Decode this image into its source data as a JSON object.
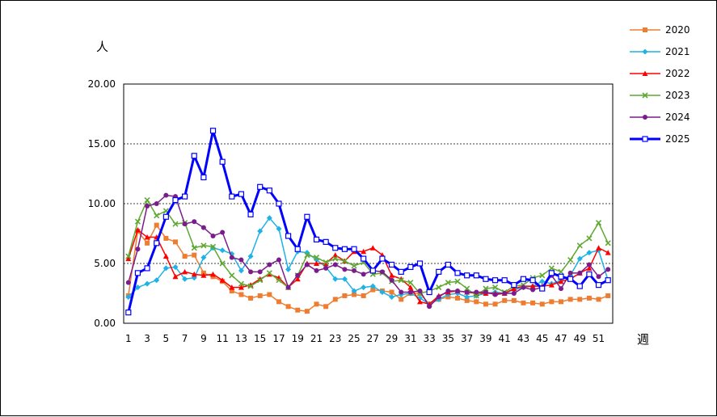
{
  "chart_data": {
    "type": "line",
    "title": "",
    "ylabel": "人",
    "xlabel": "週",
    "ylim": [
      0,
      20
    ],
    "yticks": [
      "0.00",
      "5.00",
      "10.00",
      "15.00",
      "20.00"
    ],
    "xticks": [
      "1",
      "3",
      "5",
      "7",
      "9",
      "11",
      "13",
      "15",
      "17",
      "19",
      "21",
      "23",
      "25",
      "27",
      "29",
      "31",
      "33",
      "35",
      "37",
      "39",
      "41",
      "43",
      "45",
      "47",
      "49",
      "51"
    ],
    "x": [
      1,
      2,
      3,
      4,
      5,
      6,
      7,
      8,
      9,
      10,
      11,
      12,
      13,
      14,
      15,
      16,
      17,
      18,
      19,
      20,
      21,
      22,
      23,
      24,
      25,
      26,
      27,
      28,
      29,
      30,
      31,
      32,
      33,
      34,
      35,
      36,
      37,
      38,
      39,
      40,
      41,
      42,
      43,
      44,
      45,
      46,
      47,
      48,
      49,
      50,
      51,
      52
    ],
    "grid": "horizontal dashed at 5, 10, 15",
    "legend_position": "right",
    "series": [
      {
        "name": "2020",
        "color": "#ED7D31",
        "marker": "square",
        "width": 1.5,
        "values": [
          2.3,
          7.7,
          6.7,
          8.2,
          7.1,
          6.8,
          5.6,
          5.7,
          4.2,
          3.9,
          3.5,
          2.7,
          2.4,
          2.1,
          2.3,
          2.4,
          1.8,
          1.4,
          1.1,
          1.0,
          1.6,
          1.4,
          2.0,
          2.3,
          2.4,
          2.3,
          2.8,
          2.7,
          2.6,
          2.0,
          2.5,
          2.5,
          1.6,
          2.0,
          2.2,
          2.1,
          1.9,
          1.8,
          1.6,
          1.6,
          1.9,
          1.9,
          1.7,
          1.7,
          1.6,
          1.8,
          1.8,
          2.0,
          2.0,
          2.1,
          2.0,
          2.3
        ]
      },
      {
        "name": "2021",
        "color": "#1FB2E6",
        "marker": "diamond",
        "width": 1.5,
        "values": [
          2.2,
          3.0,
          3.3,
          3.6,
          4.6,
          4.7,
          3.7,
          3.8,
          5.5,
          6.3,
          6.1,
          5.8,
          4.4,
          5.6,
          7.7,
          8.8,
          7.9,
          4.5,
          6.0,
          5.9,
          5.3,
          4.7,
          3.7,
          3.7,
          2.7,
          3.0,
          3.1,
          2.6,
          2.2,
          2.4,
          2.5,
          2.1,
          1.6,
          2.0,
          2.4,
          2.5,
          2.2,
          2.3,
          2.5,
          2.6,
          2.5,
          2.8,
          3.0,
          3.1,
          3.5,
          3.3,
          3.6,
          4.0,
          5.4,
          5.9,
          6.1,
          3.6
        ]
      },
      {
        "name": "2022",
        "color": "#FF0000",
        "marker": "triangle",
        "width": 1.5,
        "values": [
          5.4,
          7.8,
          7.2,
          7.2,
          5.6,
          3.9,
          4.3,
          4.1,
          4.0,
          4.1,
          3.6,
          3.0,
          3.0,
          3.2,
          3.7,
          4.1,
          3.8,
          3.0,
          3.7,
          5.0,
          5.0,
          5.0,
          5.7,
          5.2,
          6.0,
          6.0,
          6.3,
          5.7,
          4.0,
          3.7,
          3.0,
          1.8,
          1.6,
          2.3,
          2.6,
          2.7,
          2.6,
          2.5,
          2.5,
          2.5,
          2.5,
          2.9,
          3.1,
          3.1,
          3.1,
          3.2,
          3.5,
          3.7,
          4.2,
          4.6,
          6.3,
          5.9
        ]
      },
      {
        "name": "2023",
        "color": "#5FA832",
        "marker": "x",
        "width": 1.5,
        "values": [
          5.6,
          8.5,
          10.3,
          9.0,
          9.4,
          8.3,
          8.4,
          6.3,
          6.5,
          6.4,
          5.0,
          4.0,
          3.3,
          3.1,
          3.6,
          4.2,
          3.6,
          3.0,
          4.0,
          5.7,
          5.5,
          5.1,
          5.4,
          5.2,
          4.8,
          5.1,
          4.1,
          4.2,
          3.5,
          3.6,
          3.4,
          2.5,
          2.7,
          3.0,
          3.4,
          3.5,
          2.9,
          2.3,
          2.9,
          3.0,
          2.6,
          3.1,
          3.2,
          3.8,
          4.0,
          4.6,
          4.3,
          5.3,
          6.5,
          7.1,
          8.4,
          6.7
        ]
      },
      {
        "name": "2024",
        "color": "#7B1C8C",
        "marker": "circle",
        "width": 1.5,
        "values": [
          3.4,
          6.2,
          9.8,
          10.0,
          10.7,
          10.6,
          8.3,
          8.5,
          8.0,
          7.3,
          7.6,
          5.5,
          5.3,
          4.3,
          4.3,
          4.9,
          5.3,
          3.0,
          4.0,
          4.9,
          4.4,
          4.6,
          4.9,
          4.5,
          4.4,
          4.1,
          4.4,
          4.3,
          3.6,
          2.6,
          2.6,
          2.7,
          1.4,
          2.2,
          2.7,
          2.7,
          2.6,
          2.6,
          2.6,
          2.4,
          2.5,
          2.5,
          3.0,
          2.8,
          3.0,
          4.0,
          2.9,
          4.2,
          4.2,
          4.9,
          3.9,
          4.5
        ]
      },
      {
        "name": "2025",
        "color": "#0000FF",
        "marker": "hollow-square",
        "width": 3,
        "values": [
          0.9,
          4.2,
          4.6,
          6.7,
          8.9,
          10.3,
          10.6,
          14.0,
          12.2,
          16.1,
          13.5,
          10.6,
          10.8,
          9.1,
          11.4,
          11.1,
          10.0,
          7.3,
          6.2,
          8.9,
          7.0,
          6.8,
          6.3,
          6.2,
          6.2,
          5.4,
          4.4,
          5.4,
          4.9,
          4.3,
          4.7,
          5.0,
          2.6,
          4.3,
          4.9,
          4.2,
          4.0,
          4.0,
          3.7,
          3.6,
          3.6,
          3.2,
          3.7,
          3.6,
          2.9,
          4.2,
          3.9,
          3.7,
          3.1,
          4.1,
          3.2,
          3.6
        ]
      }
    ]
  }
}
